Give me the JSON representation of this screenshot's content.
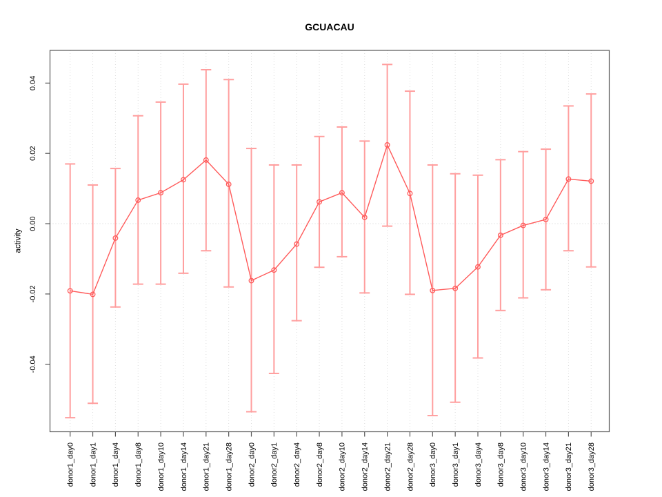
{
  "chart_data": {
    "type": "line",
    "title": "GCUACAU",
    "xlabel": "",
    "ylabel": "activity",
    "legend": "none",
    "grid": "vertical dotted gridline per category; dotted horizontal line at y=0",
    "categories": [
      "donor1_day0",
      "donor1_day1",
      "donor1_day4",
      "donor1_day8",
      "donor1_day10",
      "donor1_day14",
      "donor1_day21",
      "donor1_day28",
      "donor2_day0",
      "donor2_day1",
      "donor2_day4",
      "donor2_day8",
      "donor2_day10",
      "donor2_day14",
      "donor2_day21",
      "donor2_day28",
      "donor3_day0",
      "donor3_day1",
      "donor3_day4",
      "donor3_day8",
      "donor3_day10",
      "donor3_day14",
      "donor3_day21",
      "donor3_day28"
    ],
    "series": [
      {
        "name": "activity",
        "marker": "open-circle",
        "values": [
          -0.0191,
          -0.0201,
          -0.0041,
          0.0067,
          0.0088,
          0.0125,
          0.0181,
          0.0112,
          -0.0162,
          -0.0132,
          -0.0058,
          0.0062,
          0.0088,
          0.0018,
          0.0224,
          0.0086,
          -0.019,
          -0.0184,
          -0.0123,
          -0.0033,
          -0.0005,
          0.0012,
          0.0127,
          0.0121
        ],
        "error_high": [
          0.017,
          0.011,
          0.0157,
          0.0307,
          0.0346,
          0.0397,
          0.0438,
          0.041,
          0.0214,
          0.0167,
          0.0167,
          0.0248,
          0.0275,
          0.0235,
          0.0453,
          0.0377,
          0.0167,
          0.0142,
          0.0138,
          0.0182,
          0.0205,
          0.0212,
          0.0335,
          0.0369
        ],
        "error_low": [
          -0.0552,
          -0.0511,
          -0.0237,
          -0.0172,
          -0.0172,
          -0.0141,
          -0.0077,
          -0.018,
          -0.0535,
          -0.0426,
          -0.0276,
          -0.0124,
          -0.0094,
          -0.0197,
          -0.0007,
          -0.0201,
          -0.0546,
          -0.0508,
          -0.0382,
          -0.0247,
          -0.0211,
          -0.0188,
          -0.0077,
          -0.0123
        ]
      }
    ],
    "yticks": [
      0.04,
      0.02,
      0.0,
      -0.02,
      -0.04
    ],
    "ytick_labels": [
      "0.04",
      "0.02",
      "0.00",
      "-0.02",
      "-0.04"
    ],
    "ylim": [
      -0.0592,
      0.0493
    ],
    "colors": {
      "point_line": "#ff5a5a",
      "error_bar": "#ff9e9e",
      "gridline": "#dcdcdc",
      "zero_line": "#d0d0d0",
      "axis": "#555555"
    }
  }
}
